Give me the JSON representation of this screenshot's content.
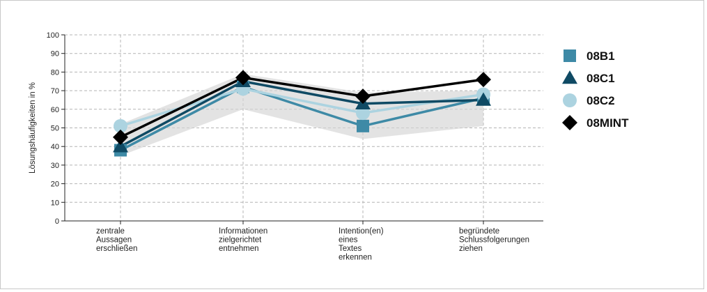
{
  "chart_data": {
    "type": "line",
    "ylabel": "Lösungshäufigkeiten in %",
    "ylim": [
      0,
      100
    ],
    "yticks": [
      0,
      10,
      20,
      30,
      40,
      50,
      60,
      70,
      80,
      90,
      100
    ],
    "grid": true,
    "legend_position": "right",
    "categories": [
      [
        "zentrale",
        "Aussagen",
        "erschließen"
      ],
      [
        "Informationen",
        "zielgerichtet",
        "entnehmen"
      ],
      [
        "Intention(en)",
        "eines",
        "Textes",
        "erkennen"
      ],
      [
        "begründete",
        "Schlussfolgerungen",
        "ziehen"
      ]
    ],
    "band": {
      "lower": [
        35,
        60,
        44,
        51
      ],
      "upper": [
        52,
        79,
        69,
        70
      ]
    },
    "series": [
      {
        "name": "08B1",
        "values": [
          38,
          72,
          51,
          66
        ],
        "color": "#3e8aa6",
        "marker": "square"
      },
      {
        "name": "08C1",
        "values": [
          40,
          75,
          63,
          65
        ],
        "color": "#0f4a64",
        "marker": "triangle"
      },
      {
        "name": "08C2",
        "values": [
          51,
          71,
          58,
          68
        ],
        "color": "#acd3e0",
        "marker": "circle"
      },
      {
        "name": "08MINT",
        "values": [
          45,
          77,
          67,
          76
        ],
        "color": "#000000",
        "marker": "diamond"
      }
    ]
  }
}
